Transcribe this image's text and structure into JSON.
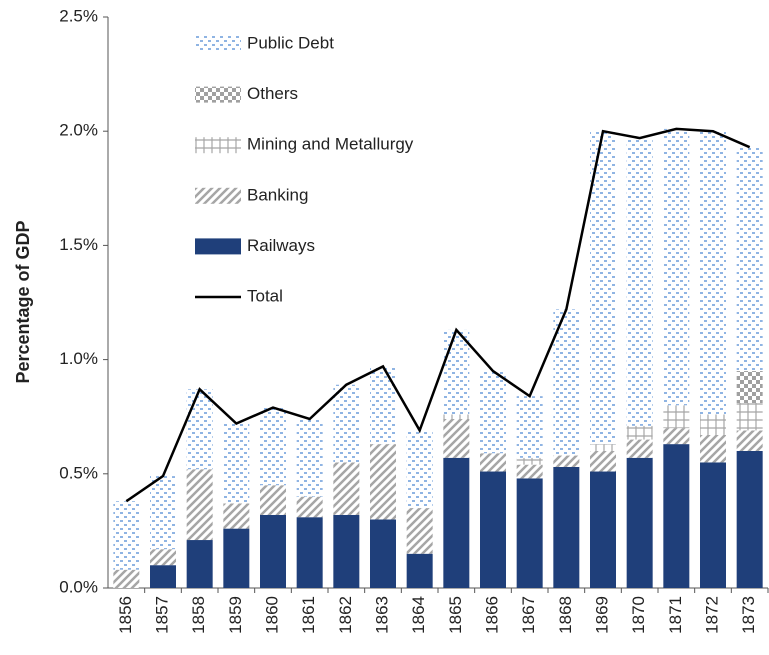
{
  "chart_data": {
    "type": "bar",
    "stacked": true,
    "y_label": "Percentage of GDP",
    "categories": [
      "1856",
      "1857",
      "1858",
      "1859",
      "1860",
      "1861",
      "1862",
      "1863",
      "1864",
      "1865",
      "1866",
      "1867",
      "1868",
      "1869",
      "1870",
      "1871",
      "1872",
      "1873"
    ],
    "series": [
      {
        "name": "Railways",
        "color": "#1f3f7a",
        "pattern": "solid",
        "values": [
          0,
          0.1,
          0.21,
          0.26,
          0.32,
          0.31,
          0.32,
          0.3,
          0.15,
          0.57,
          0.51,
          0.48,
          0.53,
          0.51,
          0.57,
          0.63,
          0.55,
          0.6
        ]
      },
      {
        "name": "Banking",
        "color": "#a6a6a6",
        "pattern": "diagonal",
        "values": [
          0.08,
          0.07,
          0.31,
          0.11,
          0.13,
          0.09,
          0.23,
          0.33,
          0.2,
          0.17,
          0.08,
          0.06,
          0.05,
          0.09,
          0.08,
          0.07,
          0.12,
          0.09
        ]
      },
      {
        "name": "Mining and Metallurgy",
        "color": "#a6a6a6",
        "pattern": "cross",
        "values": [
          0,
          0,
          0,
          0,
          0,
          0,
          0,
          0,
          0,
          0.02,
          0,
          0.03,
          0,
          0.03,
          0.06,
          0.1,
          0.09,
          0.12
        ]
      },
      {
        "name": "Others",
        "color": "#a0a0a0",
        "pattern": "checker",
        "values": [
          0,
          0,
          0,
          0,
          0,
          0,
          0,
          0,
          0,
          0,
          0,
          0,
          0,
          0,
          0,
          0,
          0,
          0.14
        ]
      },
      {
        "name": "Public Debt",
        "color": "#8fb4e3",
        "pattern": "dots",
        "values": [
          0.3,
          0.32,
          0.35,
          0.35,
          0.34,
          0.34,
          0.34,
          0.34,
          0.34,
          0.37,
          0.36,
          0.27,
          0.64,
          1.37,
          1.26,
          1.21,
          1.24,
          0.98
        ]
      }
    ],
    "total": {
      "name": "Total",
      "color": "#000000",
      "values": [
        0.38,
        0.49,
        0.87,
        0.72,
        0.79,
        0.74,
        0.89,
        0.97,
        0.69,
        1.13,
        0.95,
        0.84,
        1.22,
        2.0,
        1.97,
        2.01,
        2.0,
        1.93
      ]
    },
    "ylim": [
      0,
      2.5
    ],
    "yticks": [
      {
        "value": 0,
        "label": "0.0%"
      },
      {
        "value": 0.5,
        "label": "0.5%"
      },
      {
        "value": 1,
        "label": "1.0%"
      },
      {
        "value": 1.5,
        "label": "1.5%"
      },
      {
        "value": 2,
        "label": "2.0%"
      },
      {
        "value": 2.5,
        "label": "2.5%"
      }
    ],
    "legend": "top-left"
  }
}
